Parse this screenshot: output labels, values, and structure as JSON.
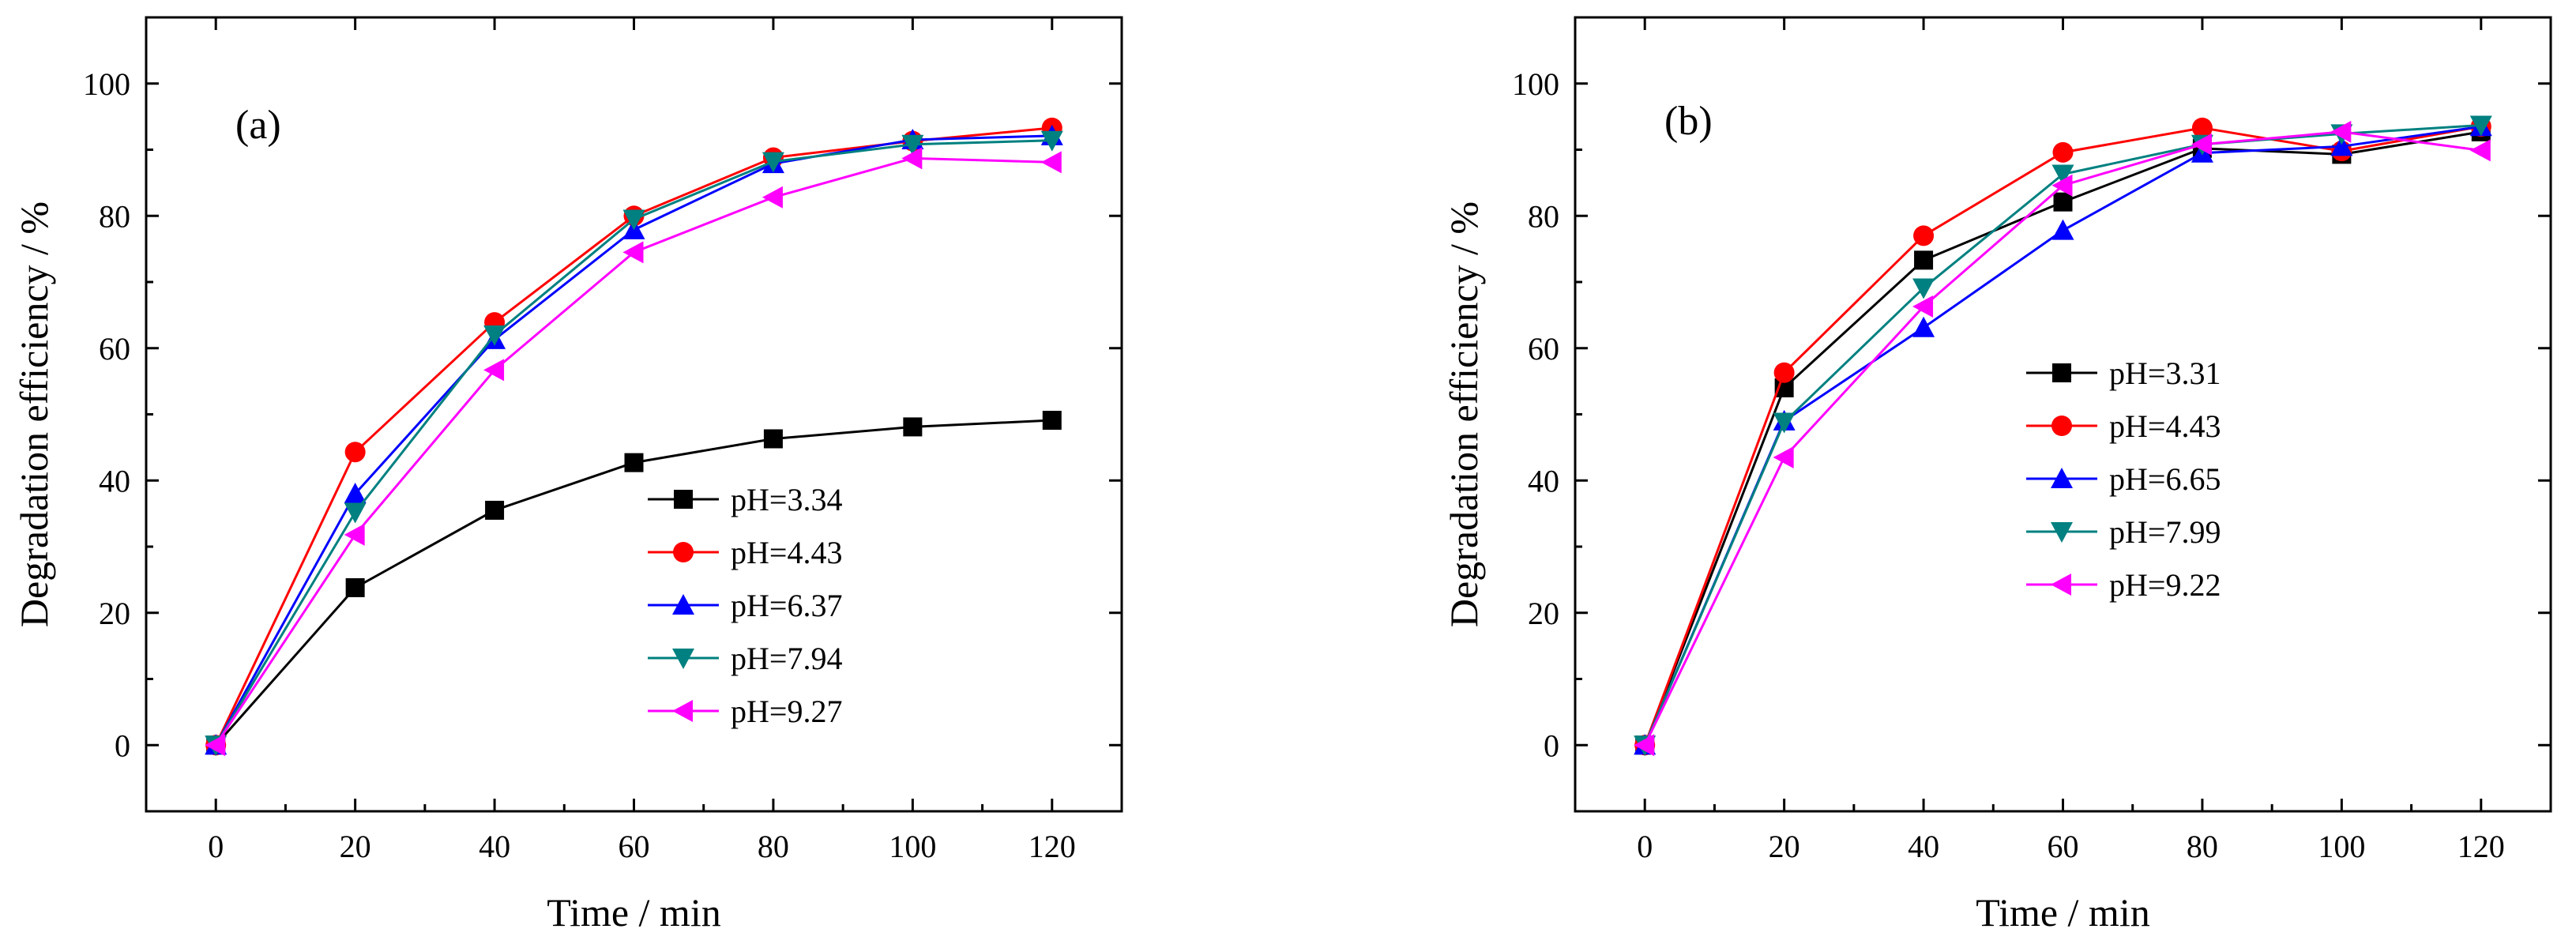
{
  "chart_data": [
    {
      "type": "line",
      "panel_label": "(a)",
      "xlabel": "Time / min",
      "ylabel": "Degradation efficiency / %",
      "xlim": [
        -10,
        130
      ],
      "ylim": [
        -10,
        110
      ],
      "xticks": [
        0,
        20,
        40,
        60,
        80,
        100,
        120
      ],
      "yticks": [
        0,
        20,
        40,
        60,
        80,
        100
      ],
      "grid": false,
      "legend_position": "center-right",
      "x": [
        0,
        20,
        40,
        60,
        80,
        100,
        120
      ],
      "series": [
        {
          "name": "pH=3.34",
          "color": "#000000",
          "marker": "square",
          "values": [
            0,
            23.8,
            35.5,
            42.7,
            46.3,
            48.1,
            49.1
          ]
        },
        {
          "name": "pH=4.43",
          "color": "#ff0000",
          "marker": "circle",
          "values": [
            0,
            44.3,
            63.9,
            80.0,
            88.8,
            91.3,
            93.3
          ]
        },
        {
          "name": "pH=6.37",
          "color": "#0000ff",
          "marker": "triangle-up",
          "values": [
            0,
            38.0,
            61.3,
            77.9,
            87.9,
            91.5,
            92.1
          ]
        },
        {
          "name": "pH=7.94",
          "color": "#008080",
          "marker": "triangle-down",
          "values": [
            0,
            35.2,
            62.0,
            79.5,
            88.2,
            90.8,
            91.4
          ]
        },
        {
          "name": "pH=9.27",
          "color": "#ff00ff",
          "marker": "triangle-left",
          "values": [
            0,
            31.8,
            56.7,
            74.5,
            82.8,
            88.7,
            88.1
          ]
        }
      ]
    },
    {
      "type": "line",
      "panel_label": "(b)",
      "xlabel": "Time / min",
      "ylabel": "Degradation efficiency / %",
      "xlim": [
        -10,
        130
      ],
      "ylim": [
        -10,
        110
      ],
      "xticks": [
        0,
        20,
        40,
        60,
        80,
        100,
        120
      ],
      "yticks": [
        0,
        20,
        40,
        60,
        80,
        100
      ],
      "grid": false,
      "legend_position": "center-right",
      "x": [
        0,
        20,
        40,
        60,
        80,
        100,
        120
      ],
      "series": [
        {
          "name": "pH=3.31",
          "color": "#000000",
          "marker": "square",
          "values": [
            0,
            54.0,
            73.3,
            82.1,
            90.2,
            89.3,
            92.7
          ]
        },
        {
          "name": "pH=4.43",
          "color": "#ff0000",
          "marker": "circle",
          "values": [
            0,
            56.3,
            77.0,
            89.6,
            93.3,
            89.8,
            93.5
          ]
        },
        {
          "name": "pH=6.65",
          "color": "#0000ff",
          "marker": "triangle-up",
          "values": [
            0,
            49.0,
            63.1,
            77.8,
            89.5,
            90.5,
            93.5
          ]
        },
        {
          "name": "pH=7.99",
          "color": "#008080",
          "marker": "triangle-down",
          "values": [
            0,
            48.8,
            69.1,
            86.3,
            90.8,
            92.4,
            93.7
          ]
        },
        {
          "name": "pH=9.22",
          "color": "#ff00ff",
          "marker": "triangle-left",
          "values": [
            0,
            43.5,
            66.3,
            84.6,
            90.8,
            92.7,
            89.9
          ]
        }
      ]
    }
  ]
}
